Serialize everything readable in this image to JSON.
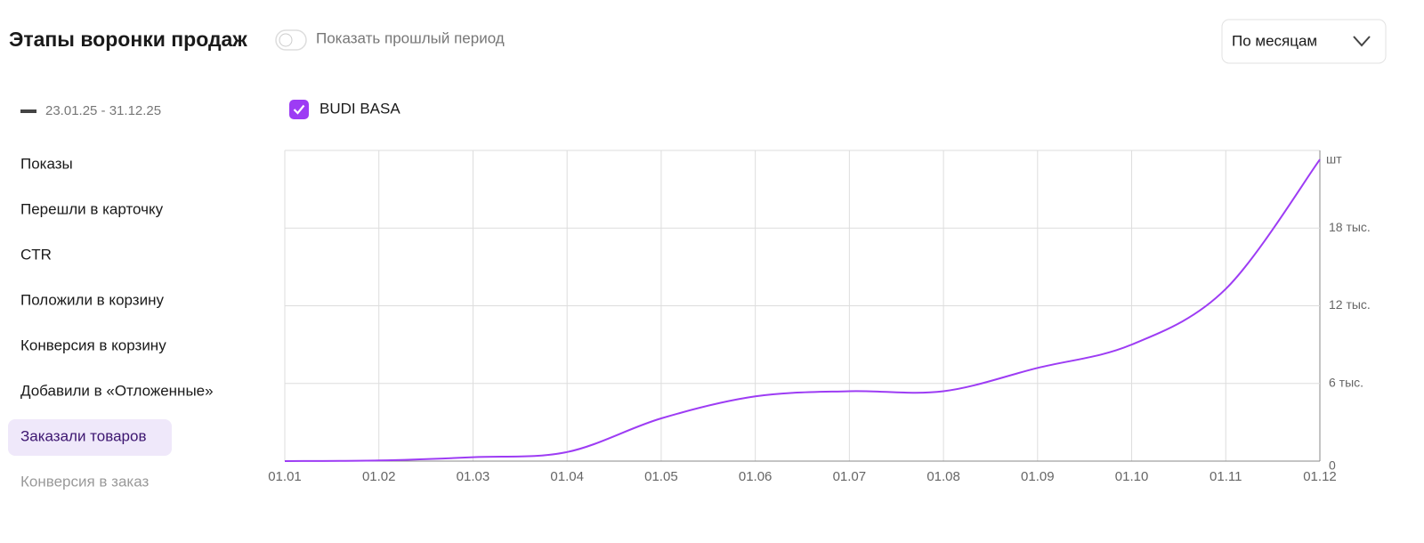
{
  "header": {
    "title": "Этапы воронки продаж",
    "toggle_label": "Показать прошлый период",
    "period_select": "По месяцам"
  },
  "sidebar": {
    "period": "23.01.25 - 31.12.25",
    "items": [
      "Показы",
      "Перешли в карточку",
      "CTR",
      "Положили в корзину",
      "Конверсия в корзину",
      "Добавили в «Отложенные»",
      "Заказали товаров",
      "Конверсия в заказ"
    ],
    "selected": "Заказали товаров"
  },
  "chart_data": {
    "type": "line",
    "y_unit": "шт",
    "categories": [
      "01.01",
      "01.02",
      "01.03",
      "01.04",
      "01.05",
      "01.06",
      "01.07",
      "01.08",
      "01.09",
      "01.10",
      "01.11",
      "01.12"
    ],
    "series": [
      {
        "name": "BUDI BASA",
        "color": "#9d3cf4",
        "values": [
          0,
          50,
          300,
          700,
          3300,
          5000,
          5400,
          5400,
          7200,
          9000,
          13300,
          23300
        ]
      }
    ],
    "ylim": [
      0,
      24000
    ],
    "yticks": [
      0,
      {
        "value": 6000,
        "label": "6 тыс."
      },
      {
        "value": 12000,
        "label": "12 тыс."
      },
      {
        "value": 18000,
        "label": "18 тыс."
      }
    ],
    "grid": true
  }
}
